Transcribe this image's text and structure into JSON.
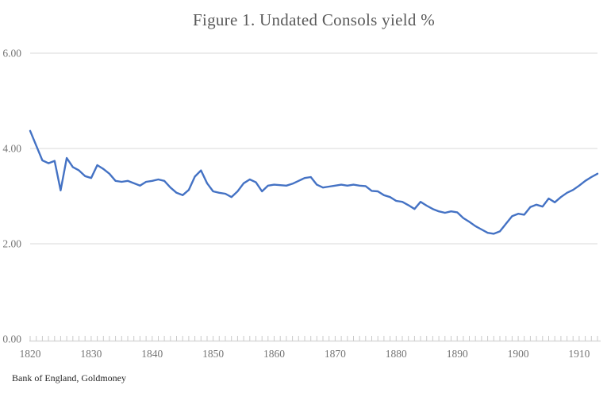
{
  "chart_data": {
    "type": "line",
    "title": "Figure 1. Undated Consols yield %",
    "source_note": "Bank of England, Goldmoney",
    "grid": true,
    "legend": false,
    "x_axis": {
      "min": 1820,
      "max": 1913,
      "minor_tick_step": 1,
      "tick_labels": [
        "1820",
        "1830",
        "1840",
        "1850",
        "1860",
        "1870",
        "1880",
        "1890",
        "1900",
        "1910"
      ]
    },
    "y_axis": {
      "min": 0,
      "max": 6,
      "step": 2,
      "tick_labels": [
        "0.00",
        "2.00",
        "4.00",
        "6.00"
      ]
    },
    "colors": {
      "line": "#4472C4",
      "gridline": "#d9d9d9",
      "tick": "#c9c9c9",
      "axis_text": "#757575",
      "title_text": "#595959",
      "source_text": "#262626"
    },
    "series": [
      {
        "name": "Undated Consols yield %",
        "color": "#4472C4",
        "x": [
          1820,
          1821,
          1822,
          1823,
          1824,
          1825,
          1826,
          1827,
          1828,
          1829,
          1830,
          1831,
          1832,
          1833,
          1834,
          1835,
          1836,
          1837,
          1838,
          1839,
          1840,
          1841,
          1842,
          1843,
          1844,
          1845,
          1846,
          1847,
          1848,
          1849,
          1850,
          1851,
          1852,
          1853,
          1854,
          1855,
          1856,
          1857,
          1858,
          1859,
          1860,
          1861,
          1862,
          1863,
          1864,
          1865,
          1866,
          1867,
          1868,
          1869,
          1870,
          1871,
          1872,
          1873,
          1874,
          1875,
          1876,
          1877,
          1878,
          1879,
          1880,
          1881,
          1882,
          1883,
          1884,
          1885,
          1886,
          1887,
          1888,
          1889,
          1890,
          1891,
          1892,
          1893,
          1894,
          1895,
          1896,
          1897,
          1898,
          1899,
          1900,
          1901,
          1902,
          1903,
          1904,
          1905,
          1906,
          1907,
          1908,
          1909,
          1910,
          1911,
          1912,
          1913
        ],
        "values": [
          4.37,
          4.06,
          3.75,
          3.69,
          3.74,
          3.12,
          3.8,
          3.61,
          3.54,
          3.42,
          3.38,
          3.65,
          3.57,
          3.47,
          3.32,
          3.3,
          3.32,
          3.27,
          3.22,
          3.3,
          3.32,
          3.35,
          3.32,
          3.18,
          3.07,
          3.02,
          3.13,
          3.41,
          3.54,
          3.27,
          3.1,
          3.07,
          3.05,
          2.98,
          3.1,
          3.27,
          3.35,
          3.29,
          3.1,
          3.22,
          3.24,
          3.23,
          3.22,
          3.26,
          3.32,
          3.38,
          3.4,
          3.24,
          3.18,
          3.2,
          3.22,
          3.24,
          3.22,
          3.24,
          3.22,
          3.21,
          3.11,
          3.1,
          3.02,
          2.98,
          2.9,
          2.88,
          2.81,
          2.73,
          2.88,
          2.8,
          2.73,
          2.68,
          2.65,
          2.68,
          2.66,
          2.54,
          2.46,
          2.37,
          2.3,
          2.23,
          2.21,
          2.26,
          2.42,
          2.58,
          2.63,
          2.61,
          2.77,
          2.82,
          2.78,
          2.95,
          2.87,
          2.98,
          3.07,
          3.13,
          3.22,
          3.32,
          3.4,
          3.47
        ]
      }
    ]
  }
}
